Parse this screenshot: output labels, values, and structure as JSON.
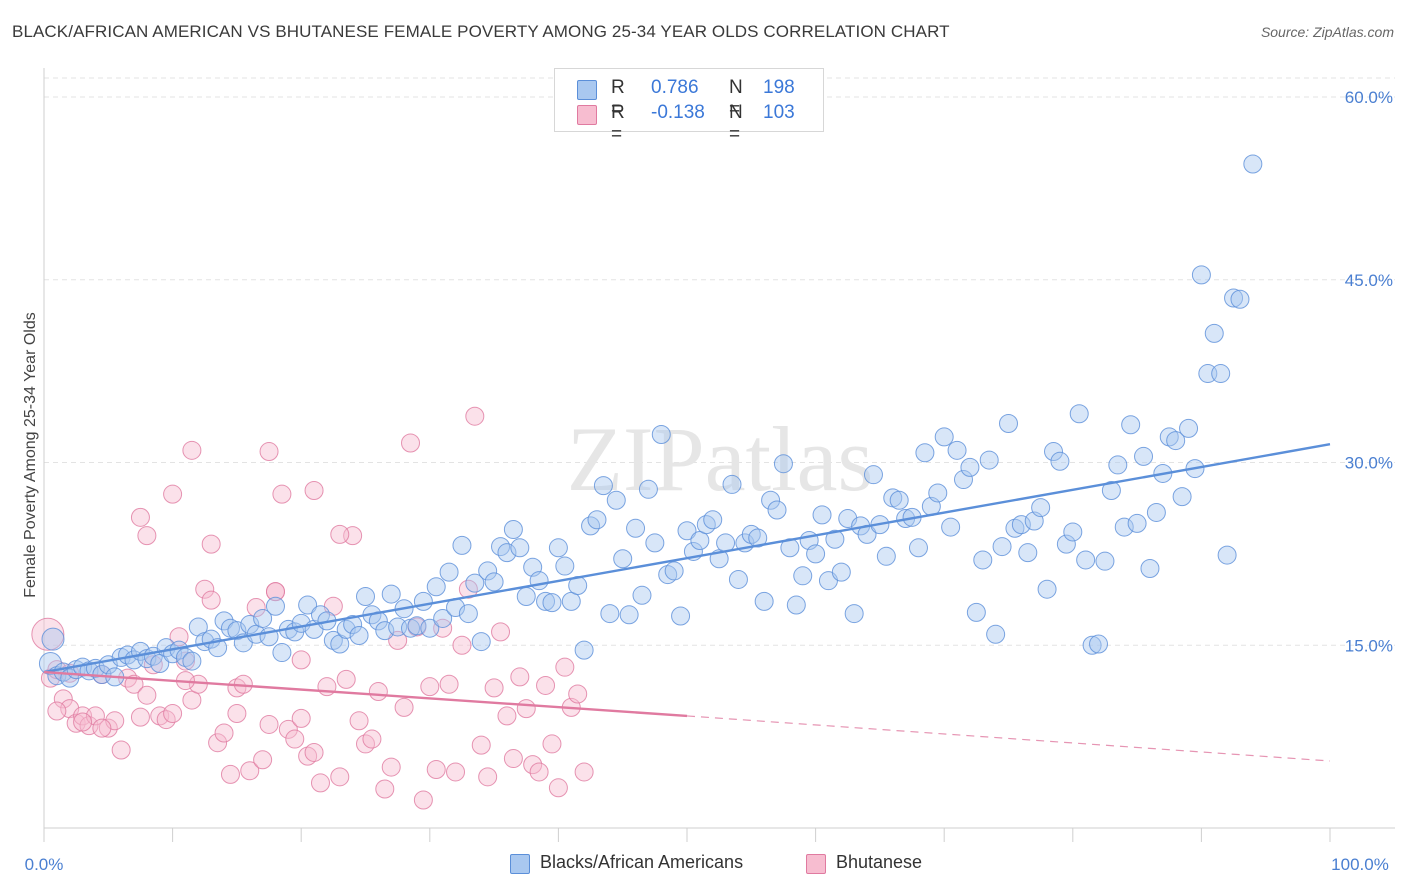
{
  "title": "BLACK/AFRICAN AMERICAN VS BHUTANESE FEMALE POVERTY AMONG 25-34 YEAR OLDS CORRELATION CHART",
  "source": "Source: ZipAtlas.com",
  "watermark": "ZIPatlas",
  "legend": {
    "rows": [
      {
        "r_label": "R =",
        "r_value": "0.786",
        "n_label": "N =",
        "n_value": "198",
        "color": "#a9c8f0",
        "border": "#5b8fd9"
      },
      {
        "r_label": "R =",
        "r_value": "-0.138",
        "n_label": "N =",
        "n_value": "103",
        "color": "#f7bdd0",
        "border": "#e07aa0"
      }
    ]
  },
  "chart_data": {
    "type": "scatter",
    "title": "BLACK/AFRICAN AMERICAN VS BHUTANESE FEMALE POVERTY AMONG 25-34 YEAR OLDS CORRELATION CHART",
    "xlabel": "",
    "ylabel": "Female Poverty Among 25-34 Year Olds",
    "xlim": [
      0,
      100
    ],
    "ylim": [
      0,
      65
    ],
    "x_tick_labels": [
      "0.0%",
      "100.0%"
    ],
    "y_ticks": [
      15,
      30,
      45,
      60
    ],
    "y_tick_labels": [
      "15.0%",
      "30.0%",
      "45.0%",
      "60.0%"
    ],
    "grid": true,
    "legend_position": "top-center",
    "series": [
      {
        "name": "Blacks/African Americans",
        "color": "#5b8fd9",
        "fill": "#a9c8f0",
        "trend": {
          "x": [
            0,
            100
          ],
          "y": [
            12.8,
            31.5
          ],
          "style": "solid"
        },
        "points": [
          [
            0.5,
            13.5
          ],
          [
            0.7,
            15.5
          ],
          [
            1,
            12.5
          ],
          [
            1.5,
            12.8
          ],
          [
            2,
            12.3
          ],
          [
            2.5,
            13
          ],
          [
            3,
            13.2
          ],
          [
            3.5,
            12.9
          ],
          [
            4,
            13.1
          ],
          [
            4.5,
            12.6
          ],
          [
            5,
            13.4
          ],
          [
            5.5,
            12.4
          ],
          [
            6,
            14
          ],
          [
            6.5,
            14.2
          ],
          [
            7,
            13.8
          ],
          [
            7.5,
            14.5
          ],
          [
            8,
            13.9
          ],
          [
            8.5,
            14.1
          ],
          [
            9,
            13.5
          ],
          [
            9.5,
            14.8
          ],
          [
            10,
            14.3
          ],
          [
            10.5,
            14.6
          ],
          [
            11,
            14
          ],
          [
            11.5,
            13.7
          ],
          [
            12,
            16.5
          ],
          [
            12.5,
            15.3
          ],
          [
            13,
            15.5
          ],
          [
            13.5,
            14.8
          ],
          [
            14,
            17
          ],
          [
            14.5,
            16.4
          ],
          [
            15,
            16.2
          ],
          [
            15.5,
            15.2
          ],
          [
            16,
            16.7
          ],
          [
            16.5,
            15.9
          ],
          [
            17,
            17.2
          ],
          [
            17.5,
            15.7
          ],
          [
            18,
            18.2
          ],
          [
            18.5,
            14.4
          ],
          [
            19,
            16.3
          ],
          [
            19.5,
            16.1
          ],
          [
            20,
            16.8
          ],
          [
            20.5,
            18.3
          ],
          [
            21,
            16.3
          ],
          [
            21.5,
            17.5
          ],
          [
            22,
            17
          ],
          [
            22.5,
            15.4
          ],
          [
            23,
            15.1
          ],
          [
            23.5,
            16.3
          ],
          [
            24,
            16.7
          ],
          [
            24.5,
            15.8
          ],
          [
            25,
            19
          ],
          [
            25.5,
            17.5
          ],
          [
            26,
            17
          ],
          [
            26.5,
            16.2
          ],
          [
            27,
            19.2
          ],
          [
            27.5,
            16.5
          ],
          [
            28,
            18
          ],
          [
            28.5,
            16.4
          ],
          [
            29,
            16.6
          ],
          [
            29.5,
            18.6
          ],
          [
            30,
            16.4
          ],
          [
            30.5,
            19.8
          ],
          [
            31,
            17.2
          ],
          [
            31.5,
            21
          ],
          [
            32,
            18.1
          ],
          [
            32.5,
            23.2
          ],
          [
            33,
            17.6
          ],
          [
            33.5,
            20.1
          ],
          [
            34,
            15.3
          ],
          [
            34.5,
            21.1
          ],
          [
            35,
            20.2
          ],
          [
            35.5,
            23.1
          ],
          [
            36,
            22.6
          ],
          [
            36.5,
            24.5
          ],
          [
            37,
            23
          ],
          [
            37.5,
            19
          ],
          [
            38,
            21.4
          ],
          [
            38.5,
            20.3
          ],
          [
            39,
            18.6
          ],
          [
            39.5,
            18.5
          ],
          [
            40,
            23
          ],
          [
            40.5,
            21.5
          ],
          [
            41,
            18.6
          ],
          [
            41.5,
            19.9
          ],
          [
            42,
            14.6
          ],
          [
            42.5,
            24.8
          ],
          [
            43,
            25.3
          ],
          [
            43.5,
            28.1
          ],
          [
            44,
            17.6
          ],
          [
            44.5,
            26.9
          ],
          [
            45,
            22.1
          ],
          [
            45.5,
            17.5
          ],
          [
            46,
            24.6
          ],
          [
            46.5,
            19.1
          ],
          [
            47,
            27.8
          ],
          [
            47.5,
            23.4
          ],
          [
            48,
            32.3
          ],
          [
            48.5,
            20.8
          ],
          [
            49,
            21.1
          ],
          [
            49.5,
            17.4
          ],
          [
            50,
            24.4
          ],
          [
            50.5,
            22.7
          ],
          [
            51,
            23.6
          ],
          [
            51.5,
            24.9
          ],
          [
            52,
            25.3
          ],
          [
            52.5,
            22.1
          ],
          [
            53,
            23.4
          ],
          [
            53.5,
            28.2
          ],
          [
            54,
            20.4
          ],
          [
            54.5,
            23.4
          ],
          [
            55,
            24.1
          ],
          [
            55.5,
            23.8
          ],
          [
            56,
            18.6
          ],
          [
            56.5,
            26.9
          ],
          [
            57,
            26.1
          ],
          [
            57.5,
            29.9
          ],
          [
            58,
            23
          ],
          [
            58.5,
            18.3
          ],
          [
            59,
            20.7
          ],
          [
            59.5,
            23.6
          ],
          [
            60,
            22.5
          ],
          [
            60.5,
            25.7
          ],
          [
            61,
            20.3
          ],
          [
            61.5,
            23.7
          ],
          [
            62,
            21
          ],
          [
            62.5,
            25.4
          ],
          [
            63,
            17.6
          ],
          [
            63.5,
            24.8
          ],
          [
            64,
            24.1
          ],
          [
            64.5,
            29
          ],
          [
            65,
            24.9
          ],
          [
            65.5,
            22.3
          ],
          [
            66,
            27.1
          ],
          [
            66.5,
            26.9
          ],
          [
            67,
            25.4
          ],
          [
            67.5,
            25.5
          ],
          [
            68,
            23
          ],
          [
            68.5,
            30.8
          ],
          [
            69,
            26.4
          ],
          [
            69.5,
            27.5
          ],
          [
            70,
            32.1
          ],
          [
            70.5,
            24.7
          ],
          [
            71,
            31
          ],
          [
            71.5,
            28.6
          ],
          [
            72,
            29.6
          ],
          [
            72.5,
            17.7
          ],
          [
            73,
            22
          ],
          [
            73.5,
            30.2
          ],
          [
            74,
            15.9
          ],
          [
            74.5,
            23.1
          ],
          [
            75,
            33.2
          ],
          [
            75.5,
            24.6
          ],
          [
            76,
            24.9
          ],
          [
            76.5,
            22.6
          ],
          [
            77,
            25.2
          ],
          [
            77.5,
            26.3
          ],
          [
            78,
            19.6
          ],
          [
            78.5,
            30.9
          ],
          [
            79,
            30.1
          ],
          [
            79.5,
            23.3
          ],
          [
            80,
            24.3
          ],
          [
            80.5,
            34
          ],
          [
            81,
            22
          ],
          [
            81.5,
            15
          ],
          [
            82,
            15.1
          ],
          [
            82.5,
            21.9
          ],
          [
            83,
            27.7
          ],
          [
            83.5,
            29.8
          ],
          [
            84,
            24.7
          ],
          [
            84.5,
            33.1
          ],
          [
            85,
            25
          ],
          [
            85.5,
            30.5
          ],
          [
            86,
            21.3
          ],
          [
            86.5,
            25.9
          ],
          [
            87,
            29.1
          ],
          [
            87.5,
            32.1
          ],
          [
            88,
            31.8
          ],
          [
            88.5,
            27.2
          ],
          [
            89,
            32.8
          ],
          [
            89.5,
            29.5
          ],
          [
            90,
            45.4
          ],
          [
            90.5,
            37.3
          ],
          [
            91,
            40.6
          ],
          [
            91.5,
            37.3
          ],
          [
            92,
            22.4
          ],
          [
            92.5,
            43.5
          ],
          [
            93,
            43.4
          ],
          [
            94,
            54.5
          ]
        ]
      },
      {
        "name": "Bhutanese",
        "color": "#e07aa0",
        "fill": "#f7bdd0",
        "trend": {
          "x": [
            0,
            50
          ],
          "y": [
            12.8,
            9.2
          ],
          "style": "solid",
          "extended_to": {
            "x": 100,
            "y": 5.5,
            "style": "dashed"
          }
        },
        "points": [
          [
            0.3,
            15.9
          ],
          [
            0.5,
            12.3
          ],
          [
            1,
            13
          ],
          [
            1.5,
            10.6
          ],
          [
            2,
            9.8
          ],
          [
            2.5,
            8.6
          ],
          [
            3,
            9.2
          ],
          [
            3.5,
            8.4
          ],
          [
            4,
            9.2
          ],
          [
            4.5,
            12.6
          ],
          [
            5,
            8.2
          ],
          [
            5.5,
            8.8
          ],
          [
            6,
            6.4
          ],
          [
            6.5,
            12.3
          ],
          [
            7,
            11.8
          ],
          [
            7.5,
            9.1
          ],
          [
            8,
            10.9
          ],
          [
            8.5,
            13.4
          ],
          [
            9,
            9.2
          ],
          [
            9.5,
            8.9
          ],
          [
            10,
            9.4
          ],
          [
            10.5,
            15.7
          ],
          [
            11,
            13.7
          ],
          [
            11.5,
            10.5
          ],
          [
            12,
            11.8
          ],
          [
            12.5,
            19.6
          ],
          [
            13,
            18.7
          ],
          [
            13.5,
            7
          ],
          [
            14,
            7.8
          ],
          [
            14.5,
            4.4
          ],
          [
            15,
            11.5
          ],
          [
            15.5,
            11.8
          ],
          [
            16,
            4.7
          ],
          [
            16.5,
            18.1
          ],
          [
            17,
            5.6
          ],
          [
            17.5,
            8.5
          ],
          [
            18,
            19.4
          ],
          [
            18.5,
            27.4
          ],
          [
            19,
            8.1
          ],
          [
            19.5,
            7.3
          ],
          [
            20,
            9
          ],
          [
            20.5,
            5.9
          ],
          [
            21,
            6.2
          ],
          [
            21.5,
            3.7
          ],
          [
            22,
            11.6
          ],
          [
            22.5,
            18.2
          ],
          [
            23,
            4.2
          ],
          [
            23.5,
            12.2
          ],
          [
            24,
            24
          ],
          [
            24.5,
            8.8
          ],
          [
            25,
            6.9
          ],
          [
            25.5,
            7.3
          ],
          [
            26,
            11.2
          ],
          [
            26.5,
            3.2
          ],
          [
            27,
            5
          ],
          [
            27.5,
            15.4
          ],
          [
            28,
            9.9
          ],
          [
            28.5,
            31.6
          ],
          [
            29,
            16.5
          ],
          [
            29.5,
            2.3
          ],
          [
            30,
            11.6
          ],
          [
            30.5,
            4.8
          ],
          [
            31,
            16.4
          ],
          [
            31.5,
            11.8
          ],
          [
            32,
            4.6
          ],
          [
            32.5,
            15
          ],
          [
            33,
            19.6
          ],
          [
            33.5,
            33.8
          ],
          [
            34,
            6.8
          ],
          [
            34.5,
            4.2
          ],
          [
            35,
            11.5
          ],
          [
            35.5,
            16.1
          ],
          [
            36,
            9.2
          ],
          [
            36.5,
            5.7
          ],
          [
            37,
            12.4
          ],
          [
            37.5,
            9.8
          ],
          [
            38,
            5.2
          ],
          [
            38.5,
            4.6
          ],
          [
            39,
            11.7
          ],
          [
            39.5,
            6.9
          ],
          [
            40,
            3.3
          ],
          [
            40.5,
            13.2
          ],
          [
            41,
            9.9
          ],
          [
            41.5,
            11
          ],
          [
            42,
            4.6
          ],
          [
            8,
            24
          ],
          [
            7.5,
            25.5
          ],
          [
            10,
            27.4
          ],
          [
            11.5,
            31
          ],
          [
            17.5,
            30.9
          ],
          [
            21,
            27.7
          ],
          [
            23,
            24.1
          ],
          [
            13,
            23.3
          ],
          [
            18,
            19.4
          ],
          [
            2,
            12.7
          ],
          [
            3,
            8.7
          ],
          [
            4.5,
            8.2
          ],
          [
            1,
            9.6
          ],
          [
            11,
            12.1
          ],
          [
            15,
            9.4
          ],
          [
            20,
            13.8
          ]
        ]
      }
    ]
  },
  "bottom_legend": [
    {
      "label": "Blacks/African Americans",
      "fill": "#a9c8f0",
      "border": "#5b8fd9"
    },
    {
      "label": "Bhutanese",
      "fill": "#f7bdd0",
      "border": "#e07aa0"
    }
  ]
}
